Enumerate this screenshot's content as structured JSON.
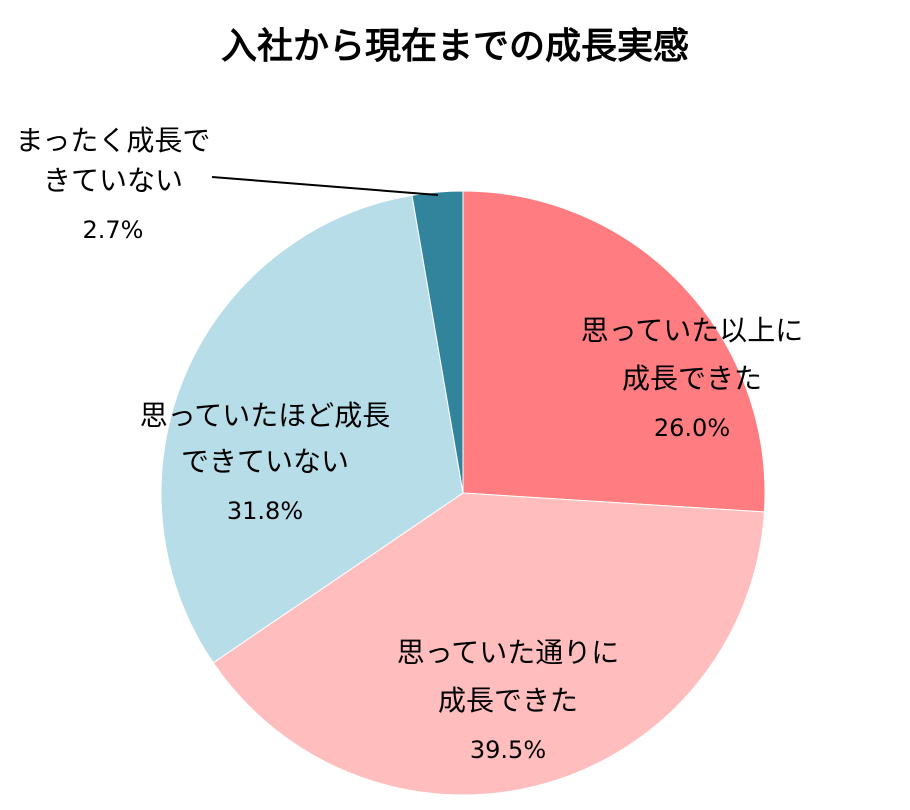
{
  "chart_data": {
    "type": "pie",
    "title": "入社から現在までの成長実感",
    "start_angle_deg": 0,
    "direction": "clockwise",
    "slices": [
      {
        "label_lines": [
          "思っていた以上に",
          "成長できた"
        ],
        "value": 26.0,
        "value_label": "26.0%",
        "color": "#ff7c80"
      },
      {
        "label_lines": [
          "思っていた通りに",
          "成長できた"
        ],
        "value": 39.5,
        "value_label": "39.5%",
        "color": "#ffbdbe"
      },
      {
        "label_lines": [
          "思っていたほど成長",
          "できていない"
        ],
        "value": 31.8,
        "value_label": "31.8%",
        "color": "#b7dde8"
      },
      {
        "label_lines": [
          "まったく成長で",
          "きていない"
        ],
        "value": 2.7,
        "value_label": "2.7%",
        "color": "#31849b"
      }
    ]
  }
}
